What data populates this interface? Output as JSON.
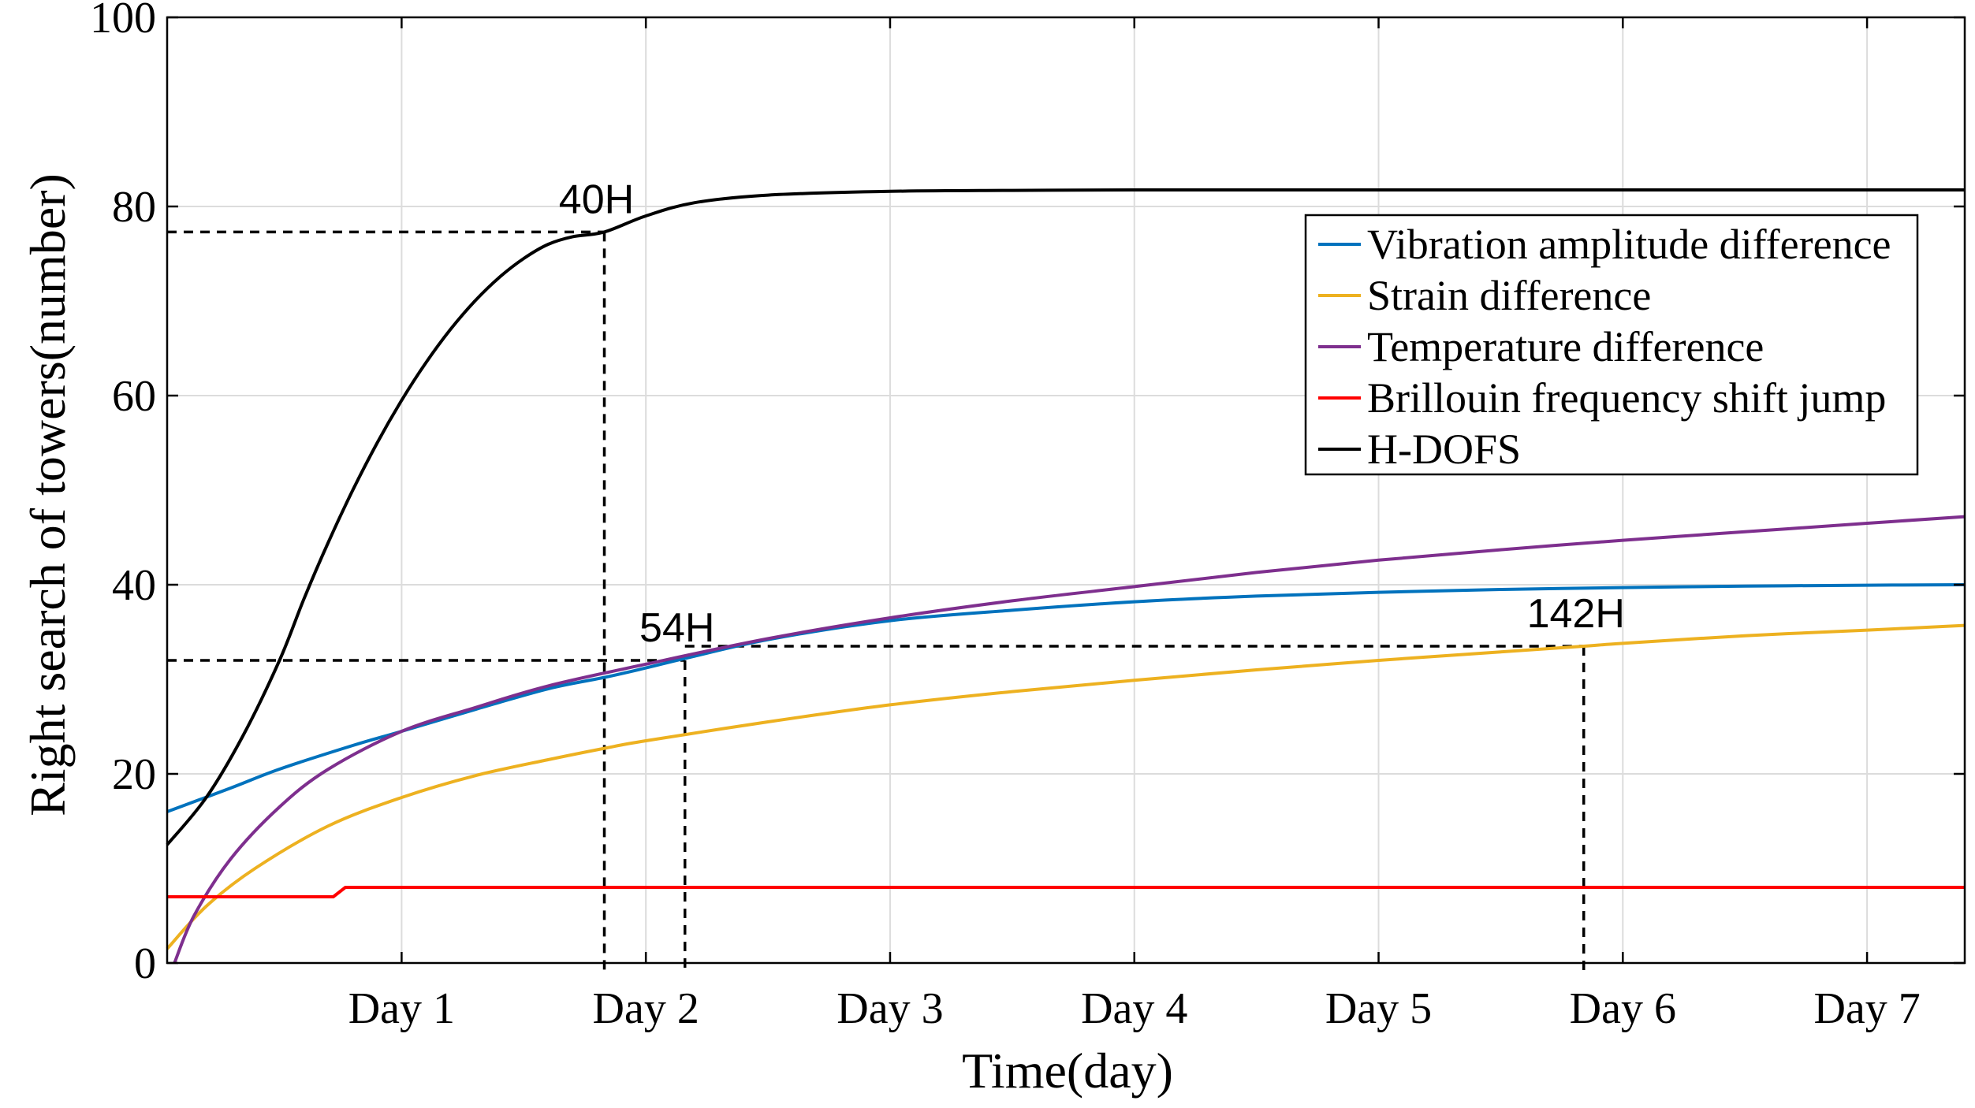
{
  "chart_data": {
    "type": "line",
    "xlabel": "Time(day)",
    "ylabel": "Right search of towers(number)",
    "xlim": [
      0.04,
      7.4
    ],
    "ylim": [
      0,
      100
    ],
    "grid": true,
    "x_ticks": [
      {
        "value": 1,
        "label": "Day 1"
      },
      {
        "value": 2,
        "label": "Day 2"
      },
      {
        "value": 3,
        "label": "Day 3"
      },
      {
        "value": 4,
        "label": "Day 4"
      },
      {
        "value": 5,
        "label": "Day 5"
      },
      {
        "value": 6,
        "label": "Day 6"
      },
      {
        "value": 7,
        "label": "Day 7"
      }
    ],
    "y_ticks": [
      {
        "value": 0,
        "label": "0"
      },
      {
        "value": 20,
        "label": "20"
      },
      {
        "value": 40,
        "label": "40"
      },
      {
        "value": 60,
        "label": "60"
      },
      {
        "value": 80,
        "label": "80"
      },
      {
        "value": 100,
        "label": "100"
      }
    ],
    "legend_position": "top-right",
    "series": [
      {
        "name": "Vibration amplitude difference",
        "color": "#0072BD",
        "x": [
          0.04,
          0.3,
          0.5,
          0.8,
          1.0,
          1.3,
          1.6,
          1.83,
          2.0,
          2.16,
          2.5,
          3.0,
          3.5,
          4.0,
          4.5,
          5.0,
          5.5,
          6.0,
          6.5,
          7.0,
          7.4
        ],
        "y": [
          16.0,
          18.5,
          20.5,
          23.0,
          24.5,
          26.8,
          29.0,
          30.2,
          31.2,
          32.2,
          34.2,
          36.2,
          37.3,
          38.2,
          38.8,
          39.2,
          39.5,
          39.7,
          39.85,
          39.95,
          40.0
        ]
      },
      {
        "name": "Strain difference",
        "color": "#EDB120",
        "x": [
          0.04,
          0.2,
          0.4,
          0.7,
          1.0,
          1.3,
          1.6,
          1.83,
          2.0,
          2.5,
          3.0,
          3.5,
          4.0,
          4.5,
          5.0,
          5.5,
          5.84,
          6.0,
          6.5,
          7.0,
          7.4
        ],
        "y": [
          1.5,
          6.0,
          10.0,
          14.5,
          17.5,
          19.8,
          21.5,
          22.7,
          23.5,
          25.5,
          27.3,
          28.7,
          29.9,
          31.0,
          32.0,
          32.9,
          33.5,
          33.8,
          34.6,
          35.2,
          35.7
        ]
      },
      {
        "name": "Temperature difference",
        "color": "#7E2F8E",
        "x": [
          0.07,
          0.15,
          0.3,
          0.5,
          0.7,
          1.0,
          1.3,
          1.6,
          2.0,
          2.5,
          3.0,
          3.5,
          4.0,
          4.5,
          5.0,
          5.5,
          6.0,
          6.5,
          7.0,
          7.4
        ],
        "y": [
          0.0,
          5.0,
          11.0,
          16.5,
          20.5,
          24.5,
          27.0,
          29.3,
          31.6,
          34.3,
          36.5,
          38.3,
          39.8,
          41.3,
          42.6,
          43.7,
          44.7,
          45.6,
          46.5,
          47.2
        ]
      },
      {
        "name": "Brillouin frequency shift jump",
        "color": "#FF0000",
        "x": [
          0.04,
          0.72,
          0.77,
          7.4
        ],
        "y": [
          7.0,
          7.0,
          8.0,
          8.0
        ]
      },
      {
        "name": "H-DOFS",
        "color": "#000000",
        "x": [
          0.04,
          0.2,
          0.35,
          0.5,
          0.6,
          0.7,
          0.8,
          0.9,
          1.0,
          1.1,
          1.2,
          1.3,
          1.4,
          1.5,
          1.6,
          1.7,
          1.83,
          2.0,
          2.2,
          2.5,
          3.0,
          3.5,
          4.0,
          5.0,
          6.0,
          7.0,
          7.4
        ],
        "y": [
          12.5,
          17.5,
          24.0,
          32.0,
          38.5,
          44.5,
          50.0,
          55.0,
          59.5,
          63.5,
          67.0,
          70.0,
          72.5,
          74.5,
          76.0,
          76.8,
          77.3,
          79.0,
          80.4,
          81.2,
          81.6,
          81.7,
          81.75,
          81.75,
          81.75,
          81.75,
          81.75
        ]
      }
    ],
    "annotations": [
      {
        "label": "40H",
        "point": [
          1.83,
          77.3
        ],
        "h_from": 0.04,
        "v_to": 0
      },
      {
        "label": "54H",
        "point": [
          2.16,
          32.0
        ],
        "h_from": 0.04,
        "v_to": 0
      },
      {
        "label": "142H",
        "point": [
          5.84,
          33.5
        ],
        "h_from": 2.16,
        "v_to": 0
      }
    ]
  }
}
